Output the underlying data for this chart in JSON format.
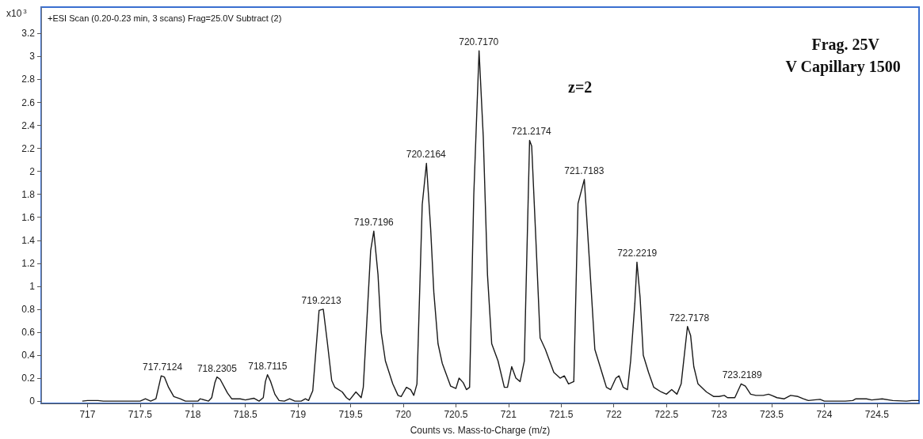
{
  "chart_data": {
    "type": "line",
    "title": "+ESI Scan (0.20-0.23 min, 3 scans) Frag=25.0V Subtract (2)",
    "xlabel": "Counts vs. Mass-to-Charge (m/z)",
    "ylabel": "x10$^{3}$",
    "xlim": [
      716.56,
      724.9
    ],
    "xticks": [
      717,
      717.5,
      718,
      718.5,
      719,
      719.5,
      720,
      720.5,
      721,
      721.5,
      722,
      722.5,
      723,
      723.5,
      724,
      724.5
    ],
    "ylim": [
      -0.02,
      3.43
    ],
    "yticks": [
      0,
      0.2,
      0.4,
      0.6,
      0.8,
      1,
      1.2,
      1.4,
      1.6,
      1.8,
      2,
      2.2,
      2.4,
      2.6,
      2.8,
      3,
      3.2
    ],
    "grid": false,
    "marker": "none",
    "line_style": "solid",
    "series": [
      {
        "color": "#1a1a1a",
        "x": [
          716.95,
          717.0,
          717.1,
          717.15,
          717.5,
          717.55,
          717.6,
          717.65,
          717.7,
          717.73,
          717.77,
          717.82,
          717.88,
          717.93,
          718.05,
          718.07,
          718.15,
          718.18,
          718.21,
          718.23,
          718.26,
          718.33,
          718.37,
          718.45,
          718.5,
          718.58,
          718.63,
          718.67,
          718.69,
          718.71,
          718.74,
          718.78,
          718.82,
          718.87,
          718.92,
          718.97,
          719.03,
          719.07,
          719.1,
          719.14,
          719.2,
          719.24,
          719.28,
          719.32,
          719.35,
          719.42,
          719.46,
          719.49,
          719.55,
          719.6,
          719.62,
          719.69,
          719.72,
          719.76,
          719.79,
          719.83,
          719.9,
          719.95,
          719.98,
          720.03,
          720.07,
          720.1,
          720.13,
          720.18,
          720.22,
          720.26,
          720.29,
          720.33,
          720.37,
          720.45,
          720.5,
          720.53,
          720.57,
          720.6,
          720.63,
          720.67,
          720.72,
          720.76,
          720.8,
          720.84,
          720.9,
          720.96,
          720.99,
          721.03,
          721.07,
          721.11,
          721.15,
          721.2,
          721.22,
          721.26,
          721.3,
          721.35,
          721.43,
          721.49,
          721.53,
          721.57,
          721.62,
          721.66,
          721.72,
          721.77,
          721.82,
          721.87,
          721.93,
          721.97,
          722.02,
          722.05,
          722.09,
          722.13,
          722.16,
          722.2,
          722.22,
          722.25,
          722.28,
          722.33,
          722.38,
          722.45,
          722.5,
          722.55,
          722.6,
          722.64,
          722.7,
          722.73,
          722.76,
          722.8,
          722.88,
          722.95,
          723.0,
          723.05,
          723.08,
          723.15,
          723.21,
          723.25,
          723.3,
          723.35,
          723.42,
          723.47,
          723.5,
          723.55,
          723.62,
          723.68,
          723.75,
          723.8,
          723.85,
          723.9,
          723.96,
          724.0,
          724.2,
          724.27,
          724.3,
          724.4,
          724.45,
          724.55,
          724.65,
          724.78,
          724.83,
          724.9
        ],
        "values": [
          0,
          0.005,
          0.005,
          0,
          0,
          0.02,
          0,
          0.02,
          0.22,
          0.21,
          0.12,
          0.04,
          0.02,
          0,
          0,
          0.02,
          0,
          0.03,
          0.16,
          0.21,
          0.19,
          0.07,
          0.02,
          0.02,
          0.01,
          0.025,
          0,
          0.03,
          0.17,
          0.23,
          0.17,
          0.06,
          0.005,
          0,
          0.02,
          0,
          0,
          0.02,
          0.005,
          0.09,
          0.79,
          0.8,
          0.5,
          0.18,
          0.12,
          0.08,
          0.03,
          0.01,
          0.08,
          0.03,
          0.12,
          1.31,
          1.48,
          1.1,
          0.6,
          0.35,
          0.15,
          0.05,
          0.04,
          0.12,
          0.1,
          0.05,
          0.15,
          1.71,
          2.07,
          1.5,
          0.95,
          0.5,
          0.33,
          0.13,
          0.11,
          0.2,
          0.16,
          0.1,
          0.12,
          1.8,
          3.05,
          2.3,
          1.1,
          0.5,
          0.35,
          0.12,
          0.12,
          0.3,
          0.2,
          0.17,
          0.35,
          2.27,
          2.22,
          1.4,
          0.55,
          0.45,
          0.25,
          0.2,
          0.22,
          0.15,
          0.17,
          1.72,
          1.93,
          1.2,
          0.45,
          0.3,
          0.12,
          0.1,
          0.2,
          0.22,
          0.12,
          0.1,
          0.35,
          0.85,
          1.21,
          0.9,
          0.4,
          0.25,
          0.12,
          0.08,
          0.06,
          0.1,
          0.06,
          0.15,
          0.65,
          0.57,
          0.3,
          0.15,
          0.08,
          0.04,
          0.04,
          0.05,
          0.03,
          0.03,
          0.15,
          0.13,
          0.06,
          0.05,
          0.05,
          0.06,
          0.05,
          0.03,
          0.02,
          0.05,
          0.04,
          0.02,
          0.005,
          0.01,
          0.015,
          0,
          0,
          0.005,
          0.02,
          0.02,
          0.01,
          0.02,
          0.005,
          0,
          0.005,
          0.005
        ]
      }
    ],
    "annotations": [
      {
        "text": "717.7124",
        "x": 717.7124,
        "y": 0.22
      },
      {
        "text": "718.2305",
        "x": 718.2305,
        "y": 0.21
      },
      {
        "text": "718.7115",
        "x": 718.7115,
        "y": 0.23
      },
      {
        "text": "719.2213",
        "x": 719.2213,
        "y": 0.8
      },
      {
        "text": "719.7196",
        "x": 719.7196,
        "y": 1.48
      },
      {
        "text": "720.2164",
        "x": 720.2164,
        "y": 2.07
      },
      {
        "text": "720.7170",
        "x": 720.717,
        "y": 3.05
      },
      {
        "text": "721.2174",
        "x": 721.2174,
        "y": 2.27
      },
      {
        "text": "721.7183",
        "x": 721.7183,
        "y": 1.93
      },
      {
        "text": "722.2219",
        "x": 722.2219,
        "y": 1.21
      },
      {
        "text": "722.7178",
        "x": 722.7178,
        "y": 0.65
      },
      {
        "text": "723.2189",
        "x": 723.2189,
        "y": 0.15
      },
      "z=2",
      "Frag. 25V",
      "V Capillary 1500"
    ]
  }
}
